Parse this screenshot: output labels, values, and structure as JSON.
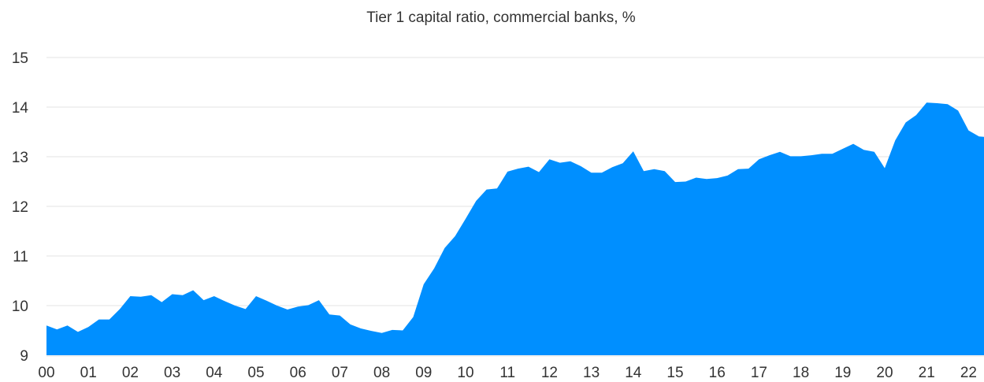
{
  "chart_data": {
    "type": "area",
    "title": "Tier 1 capital ratio, commercial banks, %",
    "xlabel": "",
    "ylabel": "",
    "x_tick_labels": [
      "00",
      "01",
      "02",
      "03",
      "04",
      "05",
      "06",
      "07",
      "08",
      "09",
      "10",
      "11",
      "12",
      "13",
      "14",
      "15",
      "16",
      "17",
      "18",
      "19",
      "20",
      "21",
      "22"
    ],
    "y_ticks": [
      9,
      10,
      11,
      12,
      13,
      14,
      15
    ],
    "ylim": [
      9,
      15.5
    ],
    "xlim": [
      2000.0,
      2022.75
    ],
    "grid": true,
    "legend": "none",
    "color": "#008fff",
    "series": [
      {
        "x": [
          2000.0,
          2000.25,
          2000.5,
          2000.75,
          2001.0,
          2001.25,
          2001.5,
          2001.75,
          2002.0,
          2002.25,
          2002.5,
          2002.75,
          2003.0,
          2003.25,
          2003.5,
          2003.75,
          2004.0,
          2004.25,
          2004.5,
          2004.75,
          2005.0,
          2005.25,
          2005.5,
          2005.75,
          2006.0,
          2006.25,
          2006.5,
          2006.75,
          2007.0,
          2007.25,
          2007.5,
          2007.75,
          2008.0,
          2008.25,
          2008.5,
          2008.75,
          2009.0,
          2009.25,
          2009.5,
          2009.75,
          2010.0,
          2010.25,
          2010.5,
          2010.75,
          2011.0,
          2011.25,
          2011.5,
          2011.75,
          2012.0,
          2012.25,
          2012.5,
          2012.75,
          2013.0,
          2013.25,
          2013.5,
          2013.75,
          2014.0,
          2014.25,
          2014.5,
          2014.75,
          2015.0,
          2015.25,
          2015.5,
          2015.75,
          2016.0,
          2016.25,
          2016.5,
          2016.75,
          2017.0,
          2017.25,
          2017.5,
          2017.75,
          2018.0,
          2018.25,
          2018.5,
          2018.75,
          2019.0,
          2019.25,
          2019.5,
          2019.75,
          2020.0,
          2020.25,
          2020.5,
          2020.75,
          2021.0,
          2021.25,
          2021.5,
          2021.75,
          2022.0,
          2022.25,
          2022.5
        ],
        "values": [
          9.6,
          9.52,
          9.6,
          9.47,
          9.57,
          9.72,
          9.72,
          9.93,
          10.19,
          10.18,
          10.21,
          10.07,
          10.23,
          10.21,
          10.31,
          10.11,
          10.19,
          10.09,
          10.0,
          9.93,
          10.19,
          10.1,
          10.0,
          9.92,
          9.98,
          10.01,
          10.11,
          9.82,
          9.8,
          9.62,
          9.54,
          9.49,
          9.45,
          9.51,
          9.5,
          9.77,
          10.43,
          10.75,
          11.16,
          11.4,
          11.75,
          12.11,
          12.34,
          12.36,
          12.7,
          12.76,
          12.8,
          12.69,
          12.95,
          12.88,
          12.91,
          12.81,
          12.68,
          12.68,
          12.79,
          12.87,
          13.11,
          12.71,
          12.75,
          12.71,
          12.49,
          12.5,
          12.58,
          12.55,
          12.57,
          12.62,
          12.75,
          12.76,
          12.95,
          13.03,
          13.1,
          13.01,
          13.01,
          13.03,
          13.06,
          13.06,
          13.16,
          13.26,
          13.14,
          13.1,
          12.77,
          13.33,
          13.69,
          13.84,
          14.09,
          14.08,
          14.06,
          13.93,
          13.53,
          13.41,
          13.39
        ]
      }
    ]
  }
}
